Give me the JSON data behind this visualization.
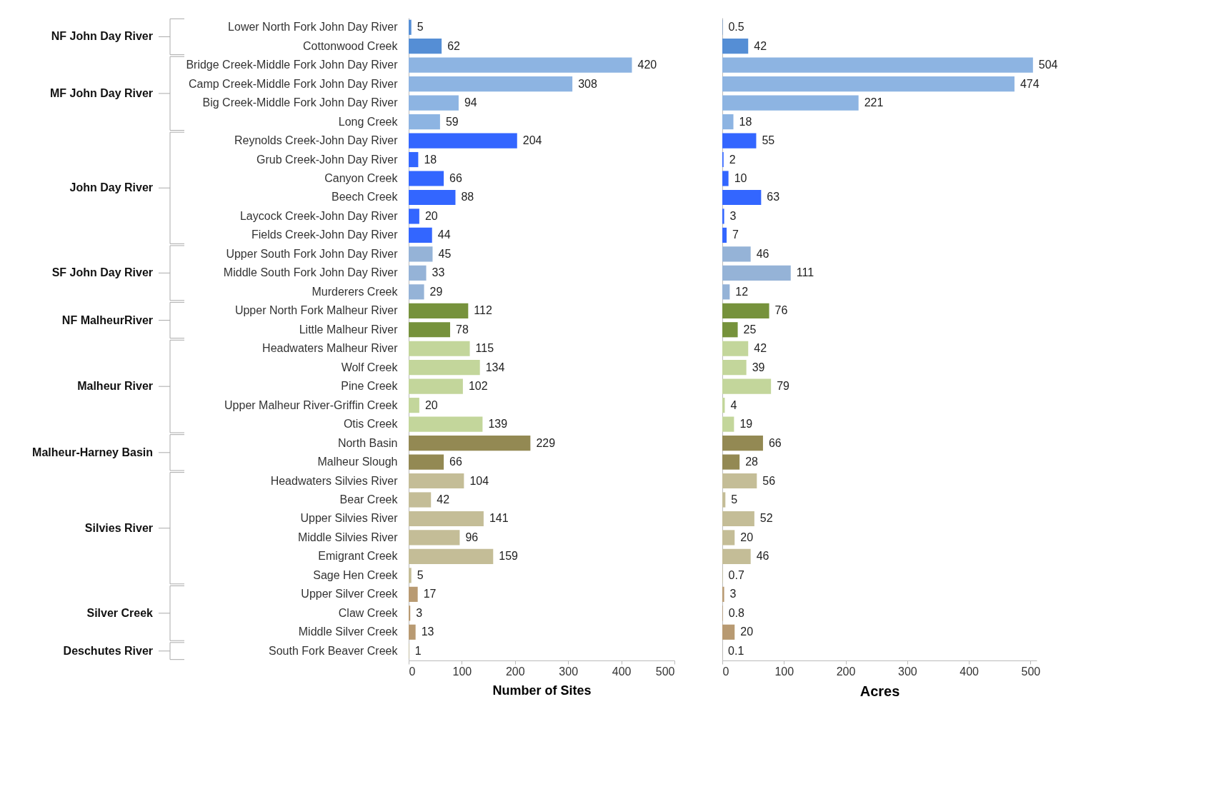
{
  "chart_data": [
    {
      "type": "bar",
      "orientation": "horizontal",
      "xlabel": "Number of Sites",
      "categories": [
        "Lower North Fork John Day River",
        "Cottonwood Creek",
        "Bridge Creek-Middle Fork John Day River",
        "Camp Creek-Middle Fork John Day River",
        "Big Creek-Middle Fork John Day River",
        "Long Creek",
        "Reynolds Creek-John Day River",
        "Grub Creek-John Day River",
        "Canyon Creek",
        "Beech Creek",
        "Laycock Creek-John Day River",
        "Fields Creek-John Day River",
        "Upper South Fork John Day River",
        "Middle South Fork John Day River",
        "Murderers Creek",
        "Upper North Fork Malheur River",
        "Little Malheur River",
        "Headwaters Malheur River",
        "Wolf Creek",
        "Pine Creek",
        "Upper Malheur River-Griffin Creek",
        "Otis Creek",
        "North Basin",
        "Malheur Slough",
        "Headwaters Silvies River",
        "Bear Creek",
        "Upper Silvies River",
        "Middle Silvies River",
        "Emigrant Creek",
        "Sage Hen Creek",
        "Upper Silver Creek",
        "Claw Creek",
        "Middle Silver Creek",
        "South Fork Beaver Creek"
      ],
      "values": [
        5,
        62,
        420,
        308,
        94,
        59,
        204,
        18,
        66,
        88,
        20,
        44,
        45,
        33,
        29,
        112,
        78,
        115,
        134,
        102,
        20,
        139,
        229,
        66,
        104,
        42,
        141,
        96,
        159,
        5,
        17,
        3,
        13,
        1
      ],
      "colors": [
        "#558ed5",
        "#558ed5",
        "#8db4e2",
        "#8db4e2",
        "#8db4e2",
        "#8db4e2",
        "#3366ff",
        "#3366ff",
        "#3366ff",
        "#3366ff",
        "#3366ff",
        "#3366ff",
        "#95b3d7",
        "#95b3d7",
        "#95b3d7",
        "#76923c",
        "#76923c",
        "#c3d69b",
        "#c3d69b",
        "#c3d69b",
        "#c3d69b",
        "#c3d69b",
        "#938953",
        "#938953",
        "#c4bd97",
        "#c4bd97",
        "#c4bd97",
        "#c4bd97",
        "#c4bd97",
        "#c4bd97",
        "#b89a72",
        "#b89a72",
        "#b89a72",
        "#c4bd97"
      ],
      "xlim": [
        0,
        500
      ],
      "xticks": [
        0,
        100,
        200,
        300,
        400,
        500
      ],
      "data_labels": true,
      "annotations": [
        "NF John Day River",
        "MF John Day River",
        "John Day River",
        "SF John Day River",
        "NF MalheurRiver",
        "Malheur River",
        "Malheur-Harney Basin",
        "Silvies River",
        "Silver Creek",
        "Deschutes River"
      ]
    },
    {
      "type": "bar",
      "orientation": "horizontal",
      "xlabel": "Acres",
      "categories": [
        null,
        null,
        null,
        null,
        null,
        null,
        null,
        null,
        null,
        null,
        null,
        null,
        null,
        null,
        null,
        null,
        null,
        null,
        null,
        null,
        null,
        null,
        null,
        null,
        null,
        null,
        null,
        null,
        null,
        null,
        null,
        null,
        null,
        null
      ],
      "values": [
        0.5,
        42,
        504,
        474,
        221,
        18,
        55,
        2,
        10,
        63,
        3,
        7,
        46,
        111,
        12,
        76,
        25,
        42,
        39,
        79,
        4,
        19,
        66,
        28,
        56,
        5,
        52,
        20,
        46,
        0.7,
        3,
        0.8,
        20,
        0.1
      ],
      "colors": [
        "#558ed5",
        "#558ed5",
        "#8db4e2",
        "#8db4e2",
        "#8db4e2",
        "#8db4e2",
        "#3366ff",
        "#3366ff",
        "#3366ff",
        "#3366ff",
        "#3366ff",
        "#3366ff",
        "#95b3d7",
        "#95b3d7",
        "#95b3d7",
        "#76923c",
        "#76923c",
        "#c3d69b",
        "#c3d69b",
        "#c3d69b",
        "#c3d69b",
        "#c3d69b",
        "#938953",
        "#938953",
        "#c4bd97",
        "#c4bd97",
        "#c4bd97",
        "#c4bd97",
        "#c4bd97",
        "#c4bd97",
        "#b89a72",
        "#b89a72",
        "#b89a72",
        "#c4bd97"
      ],
      "xlim": [
        0,
        510
      ],
      "xticks": [
        0,
        100,
        200,
        300,
        400,
        500
      ],
      "data_labels": true
    }
  ]
}
